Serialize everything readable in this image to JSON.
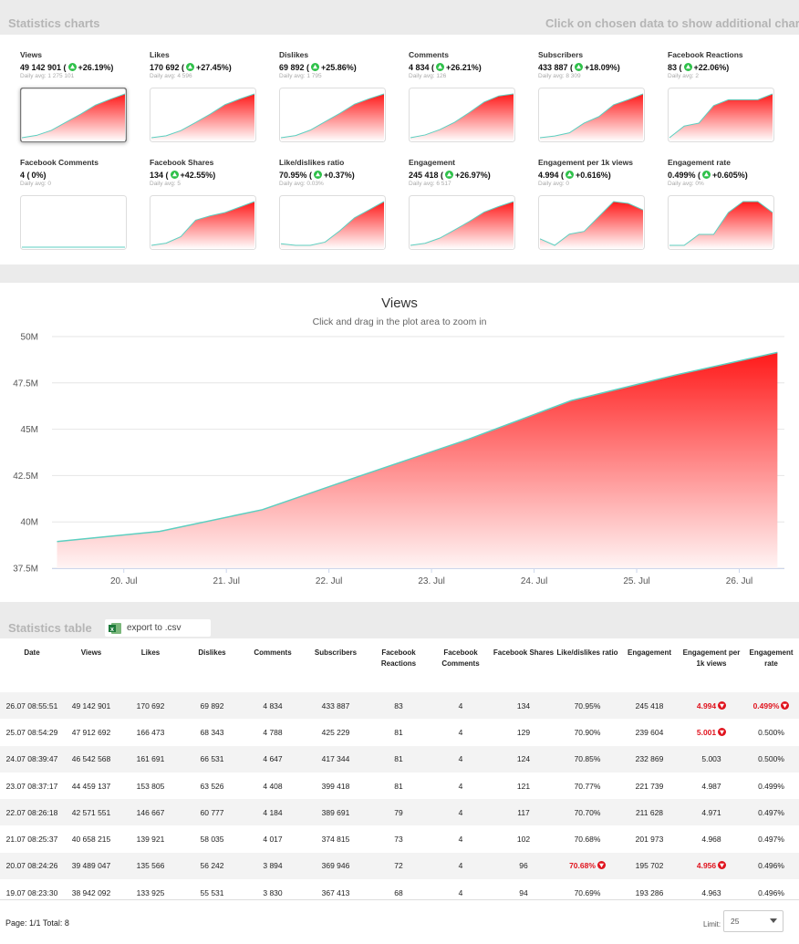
{
  "header": {
    "title": "Statistics charts",
    "hint": "Click on chosen data to show additional chart!"
  },
  "cards": [
    {
      "label": "Views",
      "value": "49 142 901 (",
      "trend": "up",
      "change": "+26.19%)",
      "daily_avg": "Daily avg: 1 275 101",
      "selected": true,
      "values": [
        38942092,
        39489047,
        40658215,
        42571551,
        44459137,
        46542568,
        47912692,
        49142901
      ]
    },
    {
      "label": "Likes",
      "value": "170 692 (",
      "trend": "up",
      "change": "+27.45%)",
      "daily_avg": "Daily avg: 4 596",
      "values": [
        133925,
        135566,
        139921,
        146667,
        153805,
        161691,
        166473,
        170692
      ]
    },
    {
      "label": "Dislikes",
      "value": "69 892 (",
      "trend": "up",
      "change": "+25.86%)",
      "daily_avg": "Daily avg: 1 795",
      "values": [
        55531,
        56242,
        58035,
        60777,
        63526,
        66531,
        68343,
        69892
      ]
    },
    {
      "label": "Comments",
      "value": "4 834 (",
      "trend": "up",
      "change": "+26.21%)",
      "daily_avg": "Daily avg: 126",
      "values": [
        3830,
        3894,
        4017,
        4184,
        4408,
        4647,
        4788,
        4834
      ]
    },
    {
      "label": "Subscribers",
      "value": "433 887 (",
      "trend": "up",
      "change": "+18.09%)",
      "daily_avg": "Daily avg: 8 309",
      "values": [
        367413,
        369946,
        374815,
        389691,
        399418,
        417344,
        425229,
        433887
      ]
    },
    {
      "label": "Facebook Reactions",
      "value": "83 (",
      "trend": "up",
      "change": "+22.06%)",
      "daily_avg": "Daily avg: 2",
      "values": [
        68,
        72,
        73,
        79,
        81,
        81,
        81,
        83
      ]
    },
    {
      "label": "Facebook Comments",
      "value": "4 (",
      "trend": "none",
      "change": "0%)",
      "daily_avg": "Daily avg: 0",
      "values": [
        4,
        4,
        4,
        4,
        4,
        4,
        4,
        4
      ]
    },
    {
      "label": "Facebook Shares",
      "value": "134 (",
      "trend": "up",
      "change": "+42.55%)",
      "daily_avg": "Daily avg: 5",
      "values": [
        94,
        96,
        102,
        117,
        121,
        124,
        129,
        134
      ]
    },
    {
      "label": "Like/dislikes ratio",
      "value": "70.95% (",
      "trend": "up",
      "change": "+0.37%)",
      "daily_avg": "Daily avg: 0.03%",
      "values": [
        70.69,
        70.68,
        70.68,
        70.7,
        70.77,
        70.85,
        70.9,
        70.95
      ]
    },
    {
      "label": "Engagement",
      "value": "245 418 (",
      "trend": "up",
      "change": "+26.97%)",
      "daily_avg": "Daily avg: 6 517",
      "values": [
        193286,
        195702,
        201973,
        211628,
        221739,
        232869,
        239604,
        245418
      ]
    },
    {
      "label": "Engagement per 1k views",
      "value": "4.994 (",
      "trend": "up",
      "change": "+0.616%)",
      "daily_avg": "Daily avg: 0",
      "values": [
        4.963,
        4.956,
        4.968,
        4.971,
        4.987,
        5.003,
        5.001,
        4.994
      ]
    },
    {
      "label": "Engagement rate",
      "value": "0.499% (",
      "trend": "up",
      "change": "+0.605%)",
      "daily_avg": "Daily avg: 0%",
      "values": [
        0.496,
        0.496,
        0.497,
        0.497,
        0.499,
        0.5,
        0.5,
        0.499
      ]
    }
  ],
  "chart_data": {
    "type": "area",
    "title": "Views",
    "subtitle": "Click and drag in the plot area to zoom in",
    "x": [
      19.349,
      20.35,
      21.351,
      22.352,
      23.359,
      24.36,
      25.371,
      26.372
    ],
    "values": [
      38942092,
      39489047,
      40658215,
      42571551,
      44459137,
      46542568,
      47912692,
      49142901
    ],
    "xlim": [
      19.3,
      26.44
    ],
    "xticks": [
      {
        "value": 20,
        "label": "20. Jul"
      },
      {
        "value": 21,
        "label": "21. Jul"
      },
      {
        "value": 22,
        "label": "22. Jul"
      },
      {
        "value": 23,
        "label": "23. Jul"
      },
      {
        "value": 24,
        "label": "24. Jul"
      },
      {
        "value": 25,
        "label": "25. Jul"
      },
      {
        "value": 26,
        "label": "26. Jul"
      }
    ],
    "ylim": [
      37500000,
      50000000
    ],
    "yticks": [
      {
        "value": 37500000,
        "label": "37.5M"
      },
      {
        "value": 40000000,
        "label": "40M"
      },
      {
        "value": 42500000,
        "label": "42.5M"
      },
      {
        "value": 45000000,
        "label": "45M"
      },
      {
        "value": 47500000,
        "label": "47.5M"
      },
      {
        "value": 50000000,
        "label": "50M"
      }
    ],
    "grid": true,
    "color": "#ff1a1a",
    "line_color": "#5ccfc0"
  },
  "table": {
    "title": "Statistics table",
    "export": "export to .csv",
    "columns": [
      "Date",
      "Views",
      "Likes",
      "Dislikes",
      "Comments",
      "Subscribers",
      "Facebook Reactions",
      "Facebook Comments",
      "Facebook Shares",
      "Like/dislikes ratio",
      "Engagement",
      "Engagement per 1k views",
      "Engagement rate"
    ],
    "rows": [
      [
        "26.07 08:55:51",
        "49 142 901",
        "170 692",
        "69 892",
        "4 834",
        "433 887",
        "83",
        "4",
        "134",
        "70.95%",
        "245 418",
        {
          "text": "4.994",
          "down": true
        },
        {
          "text": "0.499%",
          "down": true
        }
      ],
      [
        "25.07 08:54:29",
        "47 912 692",
        "166 473",
        "68 343",
        "4 788",
        "425 229",
        "81",
        "4",
        "129",
        "70.90%",
        "239 604",
        {
          "text": "5.001",
          "down": true
        },
        "0.500%"
      ],
      [
        "24.07 08:39:47",
        "46 542 568",
        "161 691",
        "66 531",
        "4 647",
        "417 344",
        "81",
        "4",
        "124",
        "70.85%",
        "232 869",
        "5.003",
        "0.500%"
      ],
      [
        "23.07 08:37:17",
        "44 459 137",
        "153 805",
        "63 526",
        "4 408",
        "399 418",
        "81",
        "4",
        "121",
        "70.77%",
        "221 739",
        "4.987",
        "0.499%"
      ],
      [
        "22.07 08:26:18",
        "42 571 551",
        "146 667",
        "60 777",
        "4 184",
        "389 691",
        "79",
        "4",
        "117",
        "70.70%",
        "211 628",
        "4.971",
        "0.497%"
      ],
      [
        "21.07 08:25:37",
        "40 658 215",
        "139 921",
        "58 035",
        "4 017",
        "374 815",
        "73",
        "4",
        "102",
        "70.68%",
        "201 973",
        "4.968",
        "0.497%"
      ],
      [
        "20.07 08:24:26",
        "39 489 047",
        "135 566",
        "56 242",
        "3 894",
        "369 946",
        "72",
        "4",
        "96",
        {
          "text": "70.68%",
          "down": true
        },
        "195 702",
        {
          "text": "4.956",
          "down": true
        },
        "0.496%"
      ],
      [
        "19.07 08:23:30",
        "38 942 092",
        "133 925",
        "55 531",
        "3 830",
        "367 413",
        "68",
        "4",
        "94",
        "70.69%",
        "193 286",
        "4.963",
        "0.496%"
      ]
    ]
  },
  "footer": {
    "pagination": "Page: 1/1 Total: 8",
    "limit_label": "Limit:",
    "limit": "25"
  }
}
